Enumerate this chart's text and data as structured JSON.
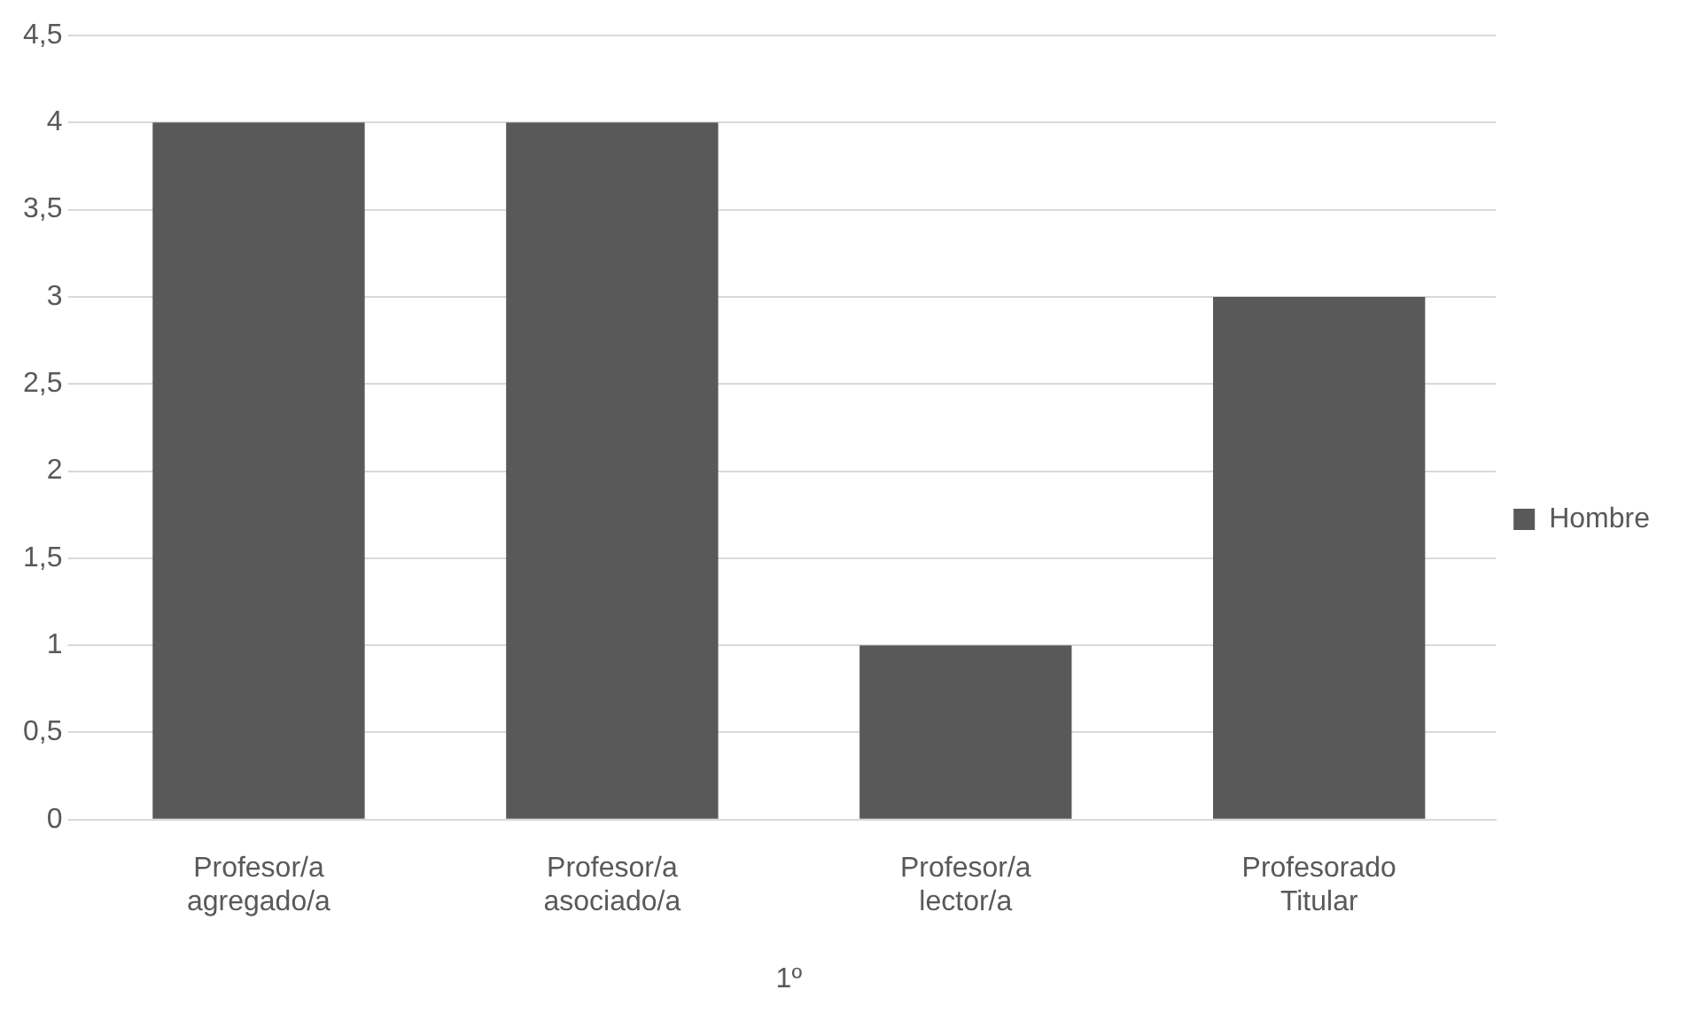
{
  "chart_data": {
    "type": "bar",
    "categories": [
      "Profesor/a agregado/a",
      "Profesor/a asociado/a",
      "Profesor/a lector/a",
      "Profesorado Titular"
    ],
    "series": [
      {
        "name": "Hombre",
        "color": "#595959",
        "values": [
          4,
          4,
          1,
          3
        ]
      }
    ],
    "xlabel": "1º",
    "ylim": [
      0,
      4.5
    ],
    "yticks": [
      0,
      {
        "value": 0.5,
        "label": "0,5"
      },
      1,
      {
        "value": 1.5,
        "label": "1,5"
      },
      2,
      {
        "value": 2.5,
        "label": "2,5"
      },
      3,
      {
        "value": 3.5,
        "label": "3,5"
      },
      4,
      {
        "value": 4.5,
        "label": "4,5"
      }
    ],
    "grid": "y",
    "legend": "right"
  }
}
